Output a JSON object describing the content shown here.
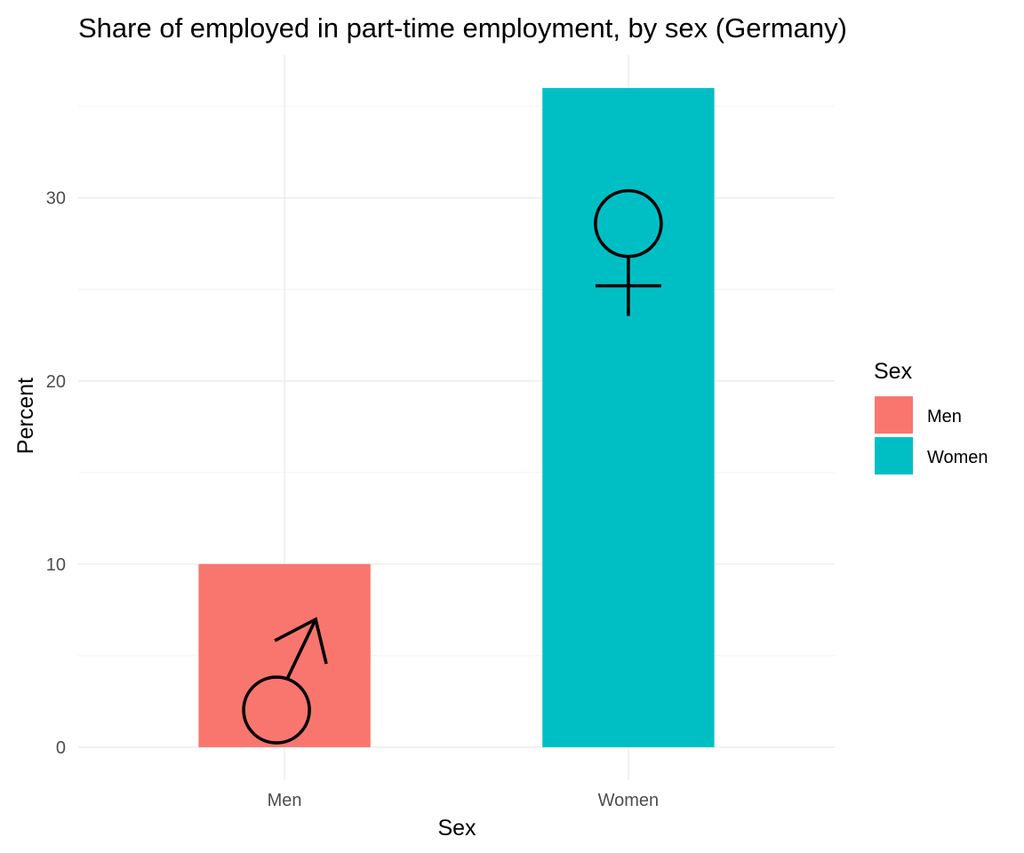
{
  "chart_data": {
    "type": "bar",
    "title": "Share of employed in part-time employment, by sex (Germany)",
    "xlabel": "Sex",
    "ylabel": "Percent",
    "categories": [
      "Men",
      "Women"
    ],
    "values": [
      10,
      36
    ],
    "colors": [
      "#F8766D",
      "#00BFC4"
    ],
    "symbol_icons": [
      "male-symbol-icon",
      "female-symbol-icon"
    ],
    "symbol_y_values": [
      4.7,
      25.2
    ],
    "ylim": [
      -1.8,
      37.8
    ],
    "yticks": [
      0,
      10,
      20,
      30
    ],
    "ytick_labels": [
      "0",
      "10",
      "20",
      "30"
    ],
    "grid": true,
    "legend": {
      "title": "Sex",
      "position": "right",
      "entries": [
        {
          "label": "Men",
          "color": "#F8766D"
        },
        {
          "label": "Women",
          "color": "#00BFC4"
        }
      ]
    }
  }
}
